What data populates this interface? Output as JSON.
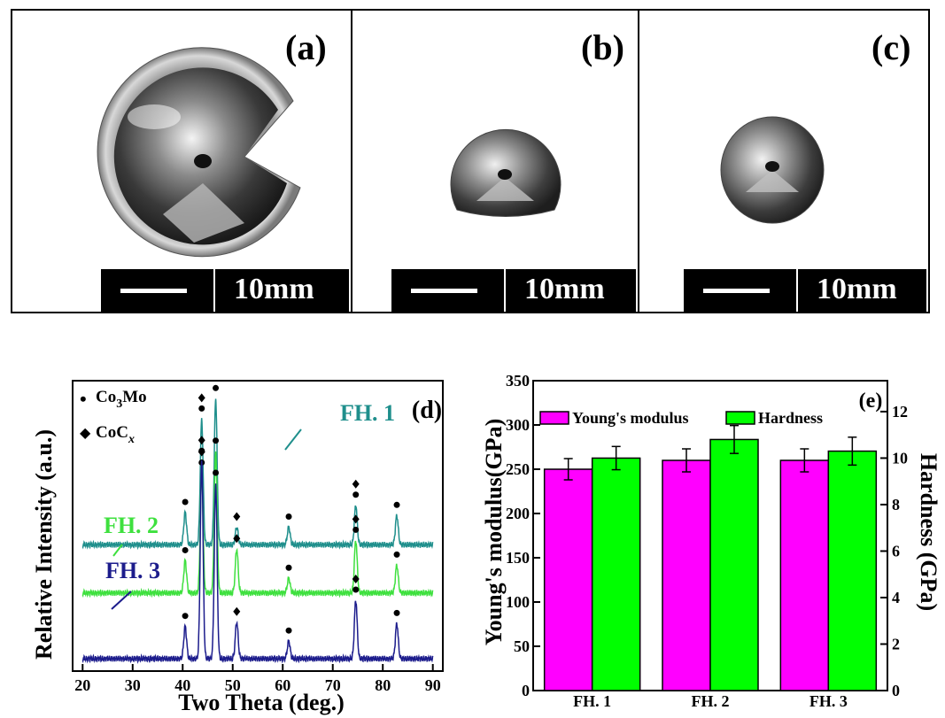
{
  "photos": {
    "panels": [
      {
        "label": "(a)",
        "scale": "10mm"
      },
      {
        "label": "(b)",
        "scale": "10mm"
      },
      {
        "label": "(c)",
        "scale": "10mm"
      }
    ]
  },
  "chart_data": [
    {
      "type": "line",
      "panel_label": "(d)",
      "xlabel": "Two Theta (deg.)",
      "ylabel": "Relative Intensity (a.u.)",
      "xlim": [
        18,
        92
      ],
      "xticks": [
        20,
        30,
        40,
        50,
        60,
        70,
        80,
        90
      ],
      "legend": [
        {
          "symbol": "•",
          "label": "Co",
          "sub": "3",
          "tail": "Mo"
        },
        {
          "symbol": "◆",
          "label": "CoC",
          "sub": "x",
          "tail": ""
        }
      ],
      "series": [
        {
          "name": "FH. 1",
          "color": "#1f8f8c",
          "baseline": 0.78,
          "peaks": [
            [
              40.5,
              0.22
            ],
            [
              43.8,
              0.86
            ],
            [
              46.6,
              1.0
            ],
            [
              50.8,
              0.12
            ],
            [
              61.2,
              0.12
            ],
            [
              74.6,
              0.27
            ],
            [
              82.8,
              0.2
            ]
          ]
        },
        {
          "name": "FH. 2",
          "color": "#3ee03e",
          "baseline": 0.45,
          "peaks": [
            [
              40.5,
              0.22
            ],
            [
              43.8,
              0.82
            ],
            [
              46.6,
              0.97
            ],
            [
              50.8,
              0.3
            ],
            [
              61.2,
              0.1
            ],
            [
              74.6,
              0.36
            ],
            [
              82.8,
              0.19
            ]
          ]
        },
        {
          "name": "FH. 3",
          "color": "#1c1c8c",
          "baseline": 0.0,
          "peaks": [
            [
              40.5,
              0.22
            ],
            [
              43.8,
              1.35
            ],
            [
              46.6,
              1.2
            ],
            [
              50.8,
              0.25
            ],
            [
              61.2,
              0.12
            ],
            [
              74.6,
              0.4
            ],
            [
              82.8,
              0.24
            ]
          ]
        }
      ],
      "markers": {
        "FH. 1": [
          [
            "dot",
            40.5
          ],
          [
            "diamond",
            43.8
          ],
          [
            "dot",
            43.8
          ],
          [
            "dot",
            46.6
          ],
          [
            "diamond",
            50.8
          ],
          [
            "dot",
            61.2
          ],
          [
            "diamond",
            74.6
          ],
          [
            "dot",
            74.6
          ],
          [
            "dot",
            82.8
          ]
        ],
        "FH. 2": [
          [
            "dot",
            40.5
          ],
          [
            "diamond",
            43.8
          ],
          [
            "dot",
            43.8
          ],
          [
            "dot",
            46.6
          ],
          [
            "diamond",
            50.8
          ],
          [
            "dot",
            61.2
          ],
          [
            "diamond",
            74.6
          ],
          [
            "dot",
            74.6
          ],
          [
            "dot",
            82.8
          ]
        ],
        "FH. 3": [
          [
            "dot",
            40.5
          ],
          [
            "diamond",
            43.8
          ],
          [
            "dot",
            43.8
          ],
          [
            "dot",
            46.6
          ],
          [
            "diamond",
            50.8
          ],
          [
            "dot",
            61.2
          ],
          [
            "diamond",
            74.6
          ],
          [
            "dot",
            74.6
          ],
          [
            "dot",
            82.8
          ]
        ]
      }
    },
    {
      "type": "bar",
      "panel_label": "(e)",
      "categories": [
        "FH. 1",
        "FH. 2",
        "FH. 3"
      ],
      "ylabel": "Young's modulus(GPa)",
      "ylim": [
        0,
        350
      ],
      "yticks": [
        0,
        50,
        100,
        150,
        200,
        250,
        300,
        350
      ],
      "y2label": "Hardness (GPa)",
      "y2lim": [
        0,
        13.33
      ],
      "y2ticks": [
        0,
        2,
        4,
        6,
        8,
        10,
        12
      ],
      "legend_placement": "top",
      "series": [
        {
          "name": "Young's modulus",
          "axis": "left",
          "color": "#ff00ff",
          "values": [
            250,
            260,
            260
          ],
          "errors": [
            12,
            13,
            13
          ]
        },
        {
          "name": "Hardness",
          "axis": "right",
          "color": "#00ff00",
          "values": [
            10.0,
            10.8,
            10.3
          ],
          "errors": [
            0.5,
            0.6,
            0.6
          ]
        }
      ]
    }
  ]
}
